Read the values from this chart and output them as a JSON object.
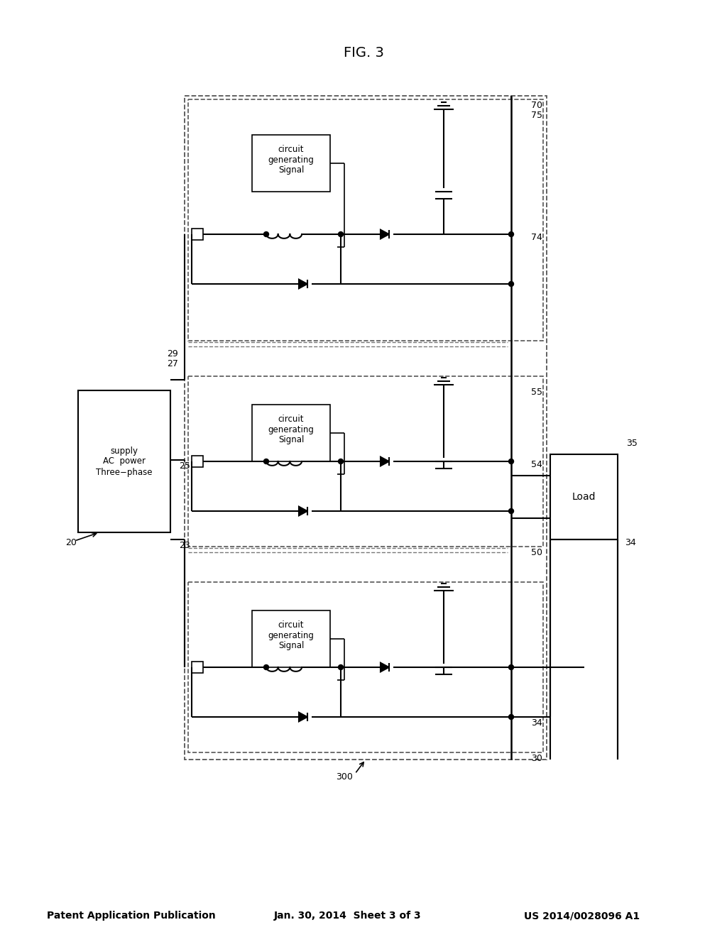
{
  "header_left": "Patent Application Publication",
  "header_mid": "Jan. 30, 2014  Sheet 3 of 3",
  "header_right": "US 2014/0028096 A1",
  "figure_label": "FIG. 3",
  "bg_color": "#ffffff",
  "line_color": "#000000",
  "dashed_color": "#555555",
  "label_color": "#000000"
}
